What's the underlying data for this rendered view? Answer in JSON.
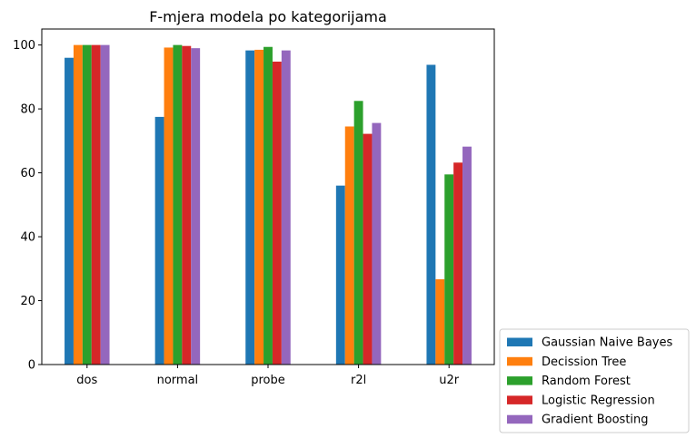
{
  "chart_data": {
    "type": "bar",
    "title": "F-mjera modela po kategorijama",
    "xlabel": "",
    "ylabel": "",
    "categories": [
      "dos",
      "normal",
      "probe",
      "r2l",
      "u2r"
    ],
    "ylim": [
      0,
      105
    ],
    "yticks": [
      0,
      20,
      40,
      60,
      80,
      100
    ],
    "grid": false,
    "legend_position": "outside-bottom-right",
    "series": [
      {
        "name": "Gaussian Naive Bayes",
        "color": "#1f77b4",
        "values": [
          96.0,
          77.5,
          98.3,
          56.0,
          93.8
        ]
      },
      {
        "name": "Decission Tree",
        "color": "#ff7f0e",
        "values": [
          100.0,
          99.2,
          98.5,
          74.5,
          26.7
        ]
      },
      {
        "name": "Random Forest",
        "color": "#2ca02c",
        "values": [
          100.0,
          100.0,
          99.4,
          82.5,
          59.5
        ]
      },
      {
        "name": "Logistic Regression",
        "color": "#d62728",
        "values": [
          100.0,
          99.7,
          94.8,
          72.2,
          63.2
        ]
      },
      {
        "name": "Gradient Boosting",
        "color": "#9467bd",
        "values": [
          100.0,
          99.0,
          98.3,
          75.6,
          68.2
        ]
      }
    ]
  }
}
